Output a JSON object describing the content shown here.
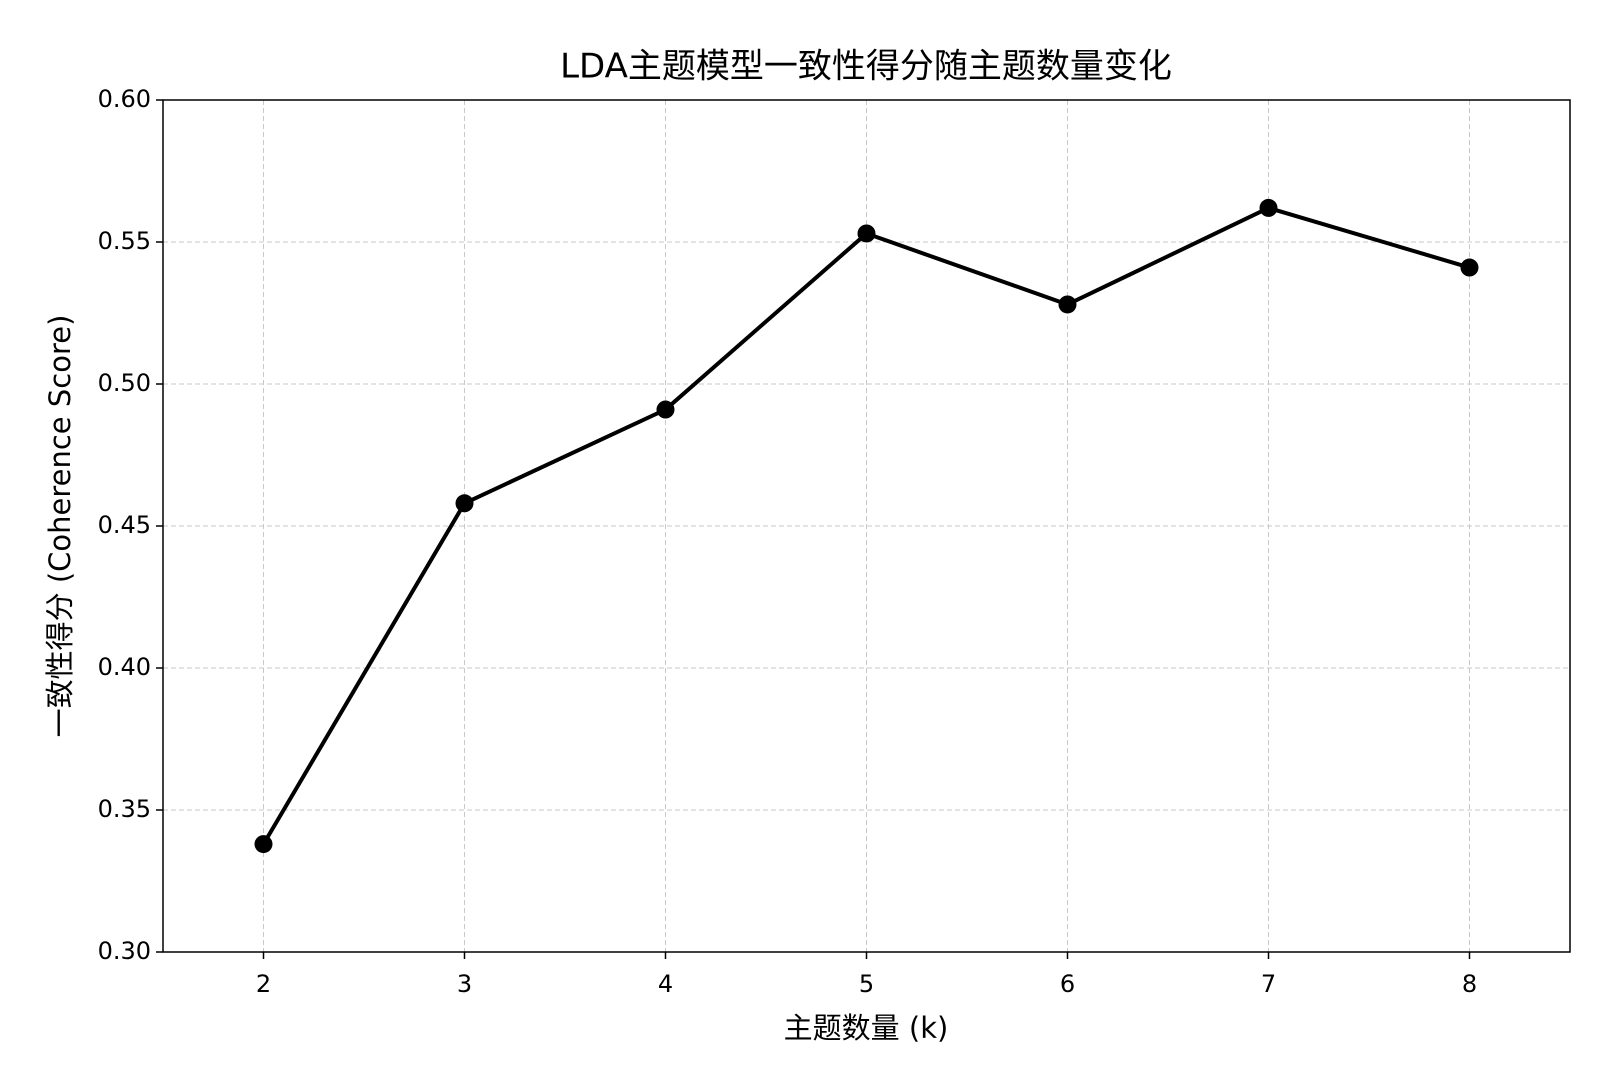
{
  "chart_data": {
    "type": "line",
    "title": "LDA主题模型一致性得分随主题数量变化",
    "x_label": "主题数量 (k)",
    "y_label": "一致性得分 (Coherence Score)",
    "x": [
      2,
      3,
      4,
      5,
      6,
      7,
      8
    ],
    "series": [
      {
        "name": "Coherence Score",
        "color": "#000000",
        "values": [
          0.338,
          0.458,
          0.491,
          0.553,
          0.528,
          0.562,
          0.541
        ]
      }
    ],
    "xlim": [
      1.5,
      8.5
    ],
    "xticks": [
      2,
      3,
      4,
      5,
      6,
      7,
      8
    ],
    "ylim": [
      0.3,
      0.6
    ],
    "yticks": [
      {
        "value": 0.3,
        "label": "0.30"
      },
      {
        "value": 0.35,
        "label": "0.35"
      },
      {
        "value": 0.4,
        "label": "0.40"
      },
      {
        "value": 0.45,
        "label": "0.45"
      },
      {
        "value": 0.5,
        "label": "0.50"
      },
      {
        "value": 0.55,
        "label": "0.55"
      },
      {
        "value": 0.6,
        "label": "0.60"
      }
    ],
    "grid": true
  }
}
